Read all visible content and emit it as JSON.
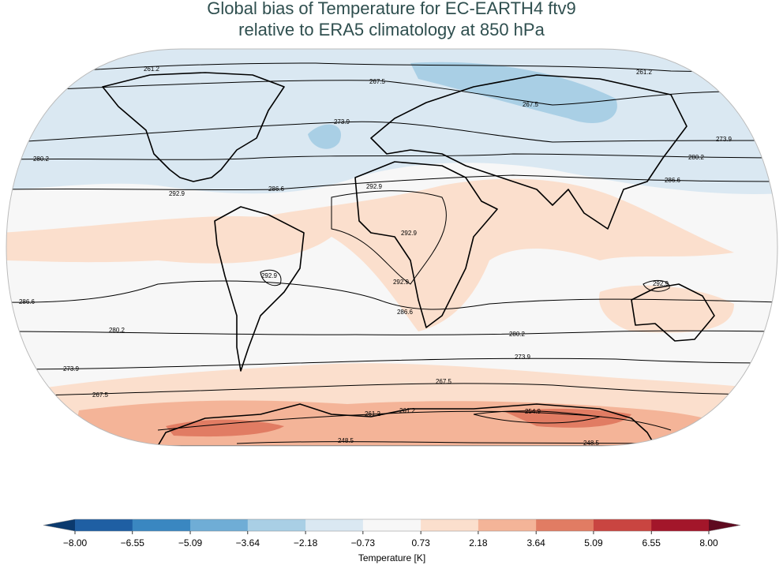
{
  "map": {
    "title": [
      "Global bias of Temperature for EC-EARTH4 ftv9",
      "relative to ERA5 climatology at 850 hPa"
    ],
    "contour_levels": [
      248.5,
      254.9,
      261.2,
      267.5,
      273.9,
      280.2,
      286.6,
      292.9
    ],
    "colorbar": {
      "label": "Temperature [K]",
      "ticks": [
        {
          "value": -8.0,
          "label": "−8.00"
        },
        {
          "value": -6.55,
          "label": "−6.55"
        },
        {
          "value": -5.09,
          "label": "−5.09"
        },
        {
          "value": -3.64,
          "label": "−3.64"
        },
        {
          "value": -2.18,
          "label": "−2.18"
        },
        {
          "value": -0.73,
          "label": "−0.73"
        },
        {
          "value": 0.73,
          "label": "0.73"
        },
        {
          "value": 2.18,
          "label": "2.18"
        },
        {
          "value": 3.64,
          "label": "3.64"
        },
        {
          "value": 5.09,
          "label": "5.09"
        },
        {
          "value": 6.55,
          "label": "6.55"
        },
        {
          "value": 8.0,
          "label": "8.00"
        }
      ],
      "colors": [
        "#1f5fa3",
        "#3a87c1",
        "#6fadd6",
        "#a9cfe5",
        "#dae8f2",
        "#f7f7f7",
        "#fbdfcd",
        "#f4b498",
        "#e17c63",
        "#c94541",
        "#a3162a"
      ],
      "under_color": "#0b3a6e",
      "over_color": "#5e0a1f"
    }
  }
}
